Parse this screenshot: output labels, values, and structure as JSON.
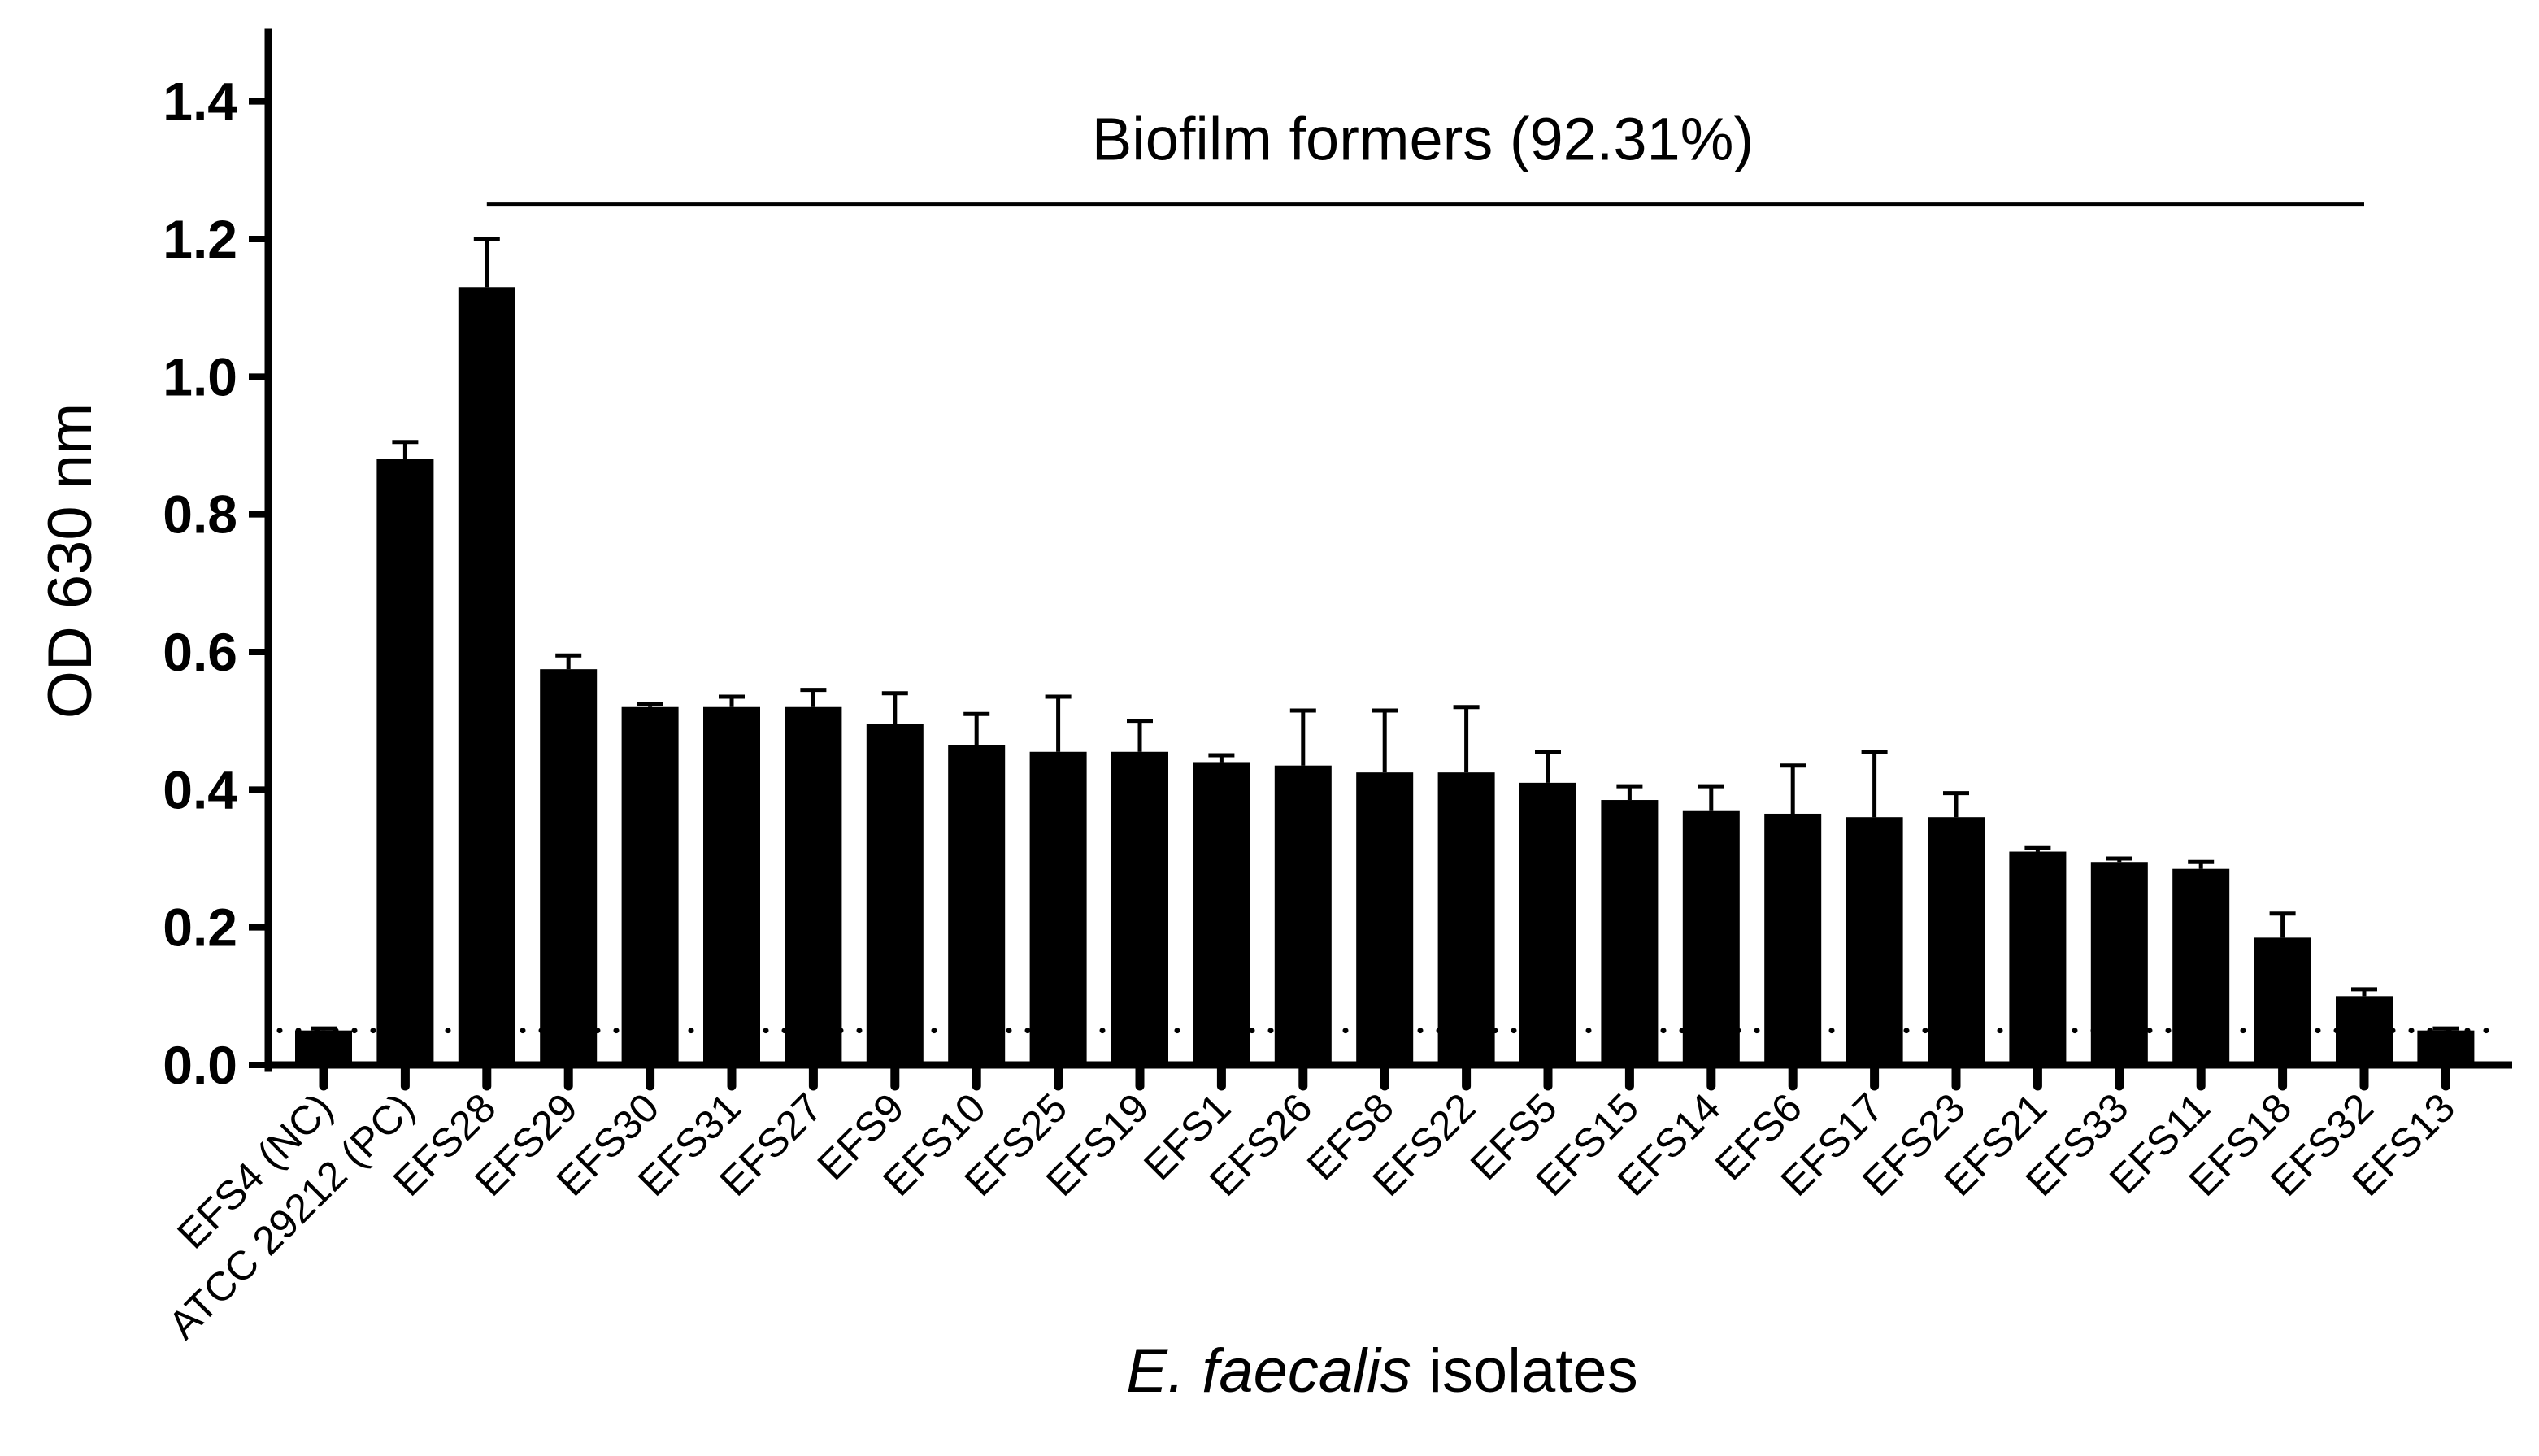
{
  "chart_data": {
    "type": "bar",
    "ylabel": "OD 630 nm",
    "xlabel_italic": "E. faecalis",
    "xlabel_rest": " isolates",
    "ylim": [
      0,
      1.5
    ],
    "yticks": [
      0.0,
      0.2,
      0.4,
      0.6,
      0.8,
      1.0,
      1.2,
      1.4
    ],
    "ytick_labels": [
      "0.0",
      "0.2",
      "0.4",
      "0.6",
      "0.8",
      "1.0",
      "1.2",
      "1.4"
    ],
    "categories": [
      "EFS4 (NC)",
      "ATCC 29212 (PC)",
      "EFS28",
      "EFS29",
      "EFS30",
      "EFS31",
      "EFS27",
      "EFS9",
      "EFS10",
      "EFS25",
      "EFS19",
      "EFS1",
      "EFS26",
      "EFS8",
      "EFS22",
      "EFS5",
      "EFS15",
      "EFS14",
      "EFS6",
      "EFS17",
      "EFS23",
      "EFS21",
      "EFS33",
      "EFS11",
      "EFS18",
      "EFS32",
      "EFS13"
    ],
    "values": [
      0.05,
      0.88,
      1.13,
      0.575,
      0.52,
      0.52,
      0.52,
      0.495,
      0.465,
      0.455,
      0.455,
      0.44,
      0.435,
      0.425,
      0.425,
      0.41,
      0.385,
      0.37,
      0.365,
      0.36,
      0.36,
      0.31,
      0.295,
      0.285,
      0.185,
      0.1,
      0.05
    ],
    "errors": [
      0.003,
      0.025,
      0.07,
      0.02,
      0.005,
      0.015,
      0.025,
      0.045,
      0.045,
      0.08,
      0.045,
      0.01,
      0.08,
      0.09,
      0.095,
      0.045,
      0.02,
      0.035,
      0.07,
      0.095,
      0.035,
      0.005,
      0.005,
      0.01,
      0.035,
      0.01,
      0.003
    ],
    "cutoff_line": 0.05,
    "annotation": {
      "text": "Biofilm formers (92.31%)",
      "y": 1.25,
      "from_category": "EFS28",
      "to_category": "EFS32"
    },
    "grid": false,
    "legend": "none",
    "colors": {
      "bar": "#000000",
      "axis": "#000000"
    }
  }
}
